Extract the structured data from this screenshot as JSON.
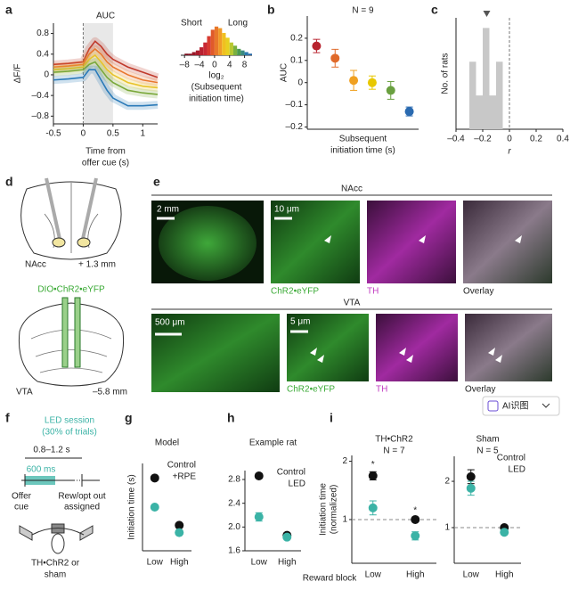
{
  "chart_data": [
    {
      "type": "line",
      "title": "AUC",
      "ylabel": "ΔF/F",
      "xlabel": [
        "Time from",
        "offer cue (s)"
      ],
      "x": [
        -0.5,
        -0.25,
        0,
        0.1,
        0.2,
        0.3,
        0.4,
        0.5,
        0.75,
        1,
        1.25
      ],
      "series": [
        {
          "color": "#c0392b",
          "values": [
            0.2,
            0.22,
            0.25,
            0.5,
            0.65,
            0.55,
            0.4,
            0.3,
            0.15,
            0.05,
            -0.05
          ]
        },
        {
          "color": "#e8772e",
          "values": [
            0.15,
            0.17,
            0.2,
            0.4,
            0.5,
            0.4,
            0.25,
            0.15,
            0.0,
            -0.1,
            -0.15
          ]
        },
        {
          "color": "#e8c32a",
          "values": [
            0.1,
            0.12,
            0.15,
            0.3,
            0.38,
            0.25,
            0.1,
            0.0,
            -0.15,
            -0.22,
            -0.25
          ]
        },
        {
          "color": "#7aa83a",
          "values": [
            0.05,
            0.07,
            0.1,
            0.2,
            0.25,
            0.1,
            -0.05,
            -0.15,
            -0.3,
            -0.35,
            -0.38
          ]
        },
        {
          "color": "#2a7ab8",
          "values": [
            -0.1,
            -0.08,
            -0.05,
            0.1,
            0.1,
            -0.1,
            -0.3,
            -0.45,
            -0.6,
            -0.6,
            -0.58
          ]
        }
      ],
      "shade": [
        0,
        0.5
      ],
      "vline": 0,
      "xlim": [
        -0.5,
        1.25
      ],
      "xticks": [
        -0.5,
        0,
        0.5,
        1
      ],
      "ylim": [
        -0.95,
        1.0
      ],
      "yticks": [
        {
          "value": -0.8,
          "label": "–0.8"
        },
        {
          "value": -0.4,
          "label": "–0.4"
        },
        0,
        0.4,
        0.8
      ]
    },
    {
      "type": "histogram",
      "labels": [
        "Short",
        "Long"
      ],
      "xlabel": [
        "log₂",
        "(Subsequent",
        "initiation time)"
      ],
      "bins": [
        -8,
        -7,
        -6,
        -5,
        -4,
        -3,
        -2,
        -1,
        0,
        1,
        2,
        3,
        4,
        5,
        6,
        7,
        8,
        9,
        10
      ],
      "values": [
        1,
        1,
        2,
        3,
        5,
        8,
        12,
        16,
        18,
        17,
        14,
        11,
        8,
        6,
        4,
        3,
        2,
        1
      ],
      "colors": [
        "#7a1020",
        "#8a1424",
        "#9a1828",
        "#a81c2c",
        "#b82030",
        "#c82834",
        "#d83a30",
        "#e05a2a",
        "#e8782a",
        "#f09a28",
        "#f0c020",
        "#e8d020",
        "#b8c830",
        "#7ab040",
        "#4a9a50",
        "#3a8a80",
        "#2a7ab0",
        "#2a6aa8"
      ],
      "xlim": [
        -9,
        10
      ],
      "xticks": [
        {
          "value": -8,
          "label": "–8"
        },
        {
          "value": -4,
          "label": "–4"
        },
        0,
        4,
        8
      ],
      "ylim": [
        0,
        19
      ]
    },
    {
      "type": "errorbar",
      "title": "N = 9",
      "ylabel": "AUC",
      "xlabel": [
        "Subsequent",
        "initiation time (s)"
      ],
      "categories": [
        null,
        null,
        null,
        null,
        null,
        null
      ],
      "values": [
        0.165,
        0.11,
        0.01,
        0.0,
        -0.035,
        -0.13
      ],
      "errors": [
        0.03,
        0.04,
        0.045,
        0.03,
        0.04,
        0.02
      ],
      "colors": [
        "#b8232e",
        "#e06a2a",
        "#f0a020",
        "#e8c800",
        "#6aa040",
        "#2a6ab0"
      ],
      "ylim": [
        -0.21,
        0.3
      ],
      "yticks": [
        {
          "value": -0.2,
          "label": "–0.2"
        },
        {
          "value": -0.1,
          "label": "–0.1"
        },
        0,
        0.1,
        0.2
      ]
    },
    {
      "type": "histogram",
      "ylabel": "No. of rats",
      "xlabel": [
        "r"
      ],
      "color": "#c8c8c8",
      "bins": [
        -0.3,
        -0.25,
        -0.2,
        -0.15,
        -0.1,
        -0.05
      ],
      "values": [
        2,
        1,
        3,
        1,
        2
      ],
      "marker": -0.17,
      "vline": 0,
      "xlim": [
        -0.4,
        0.4
      ],
      "xticks": [
        {
          "value": -0.4,
          "label": "–0.4"
        },
        {
          "value": -0.2,
          "label": "–0.2"
        },
        0,
        0.2,
        0.4
      ],
      "ylim": [
        0,
        3.3
      ]
    },
    {
      "type": "dot",
      "title": "Model",
      "ylabel": [
        "Initiation time (s)"
      ],
      "legend": true,
      "categories": [
        "Low",
        "High"
      ],
      "series": [
        {
          "name": "Control",
          "color": "#111111",
          "values": [
            1.0,
            0.35
          ]
        },
        {
          "name": "+RPE",
          "color": "#3bb3a6",
          "values": [
            0.6,
            0.25
          ]
        }
      ],
      "ylim": [
        0,
        1.2
      ]
    },
    {
      "type": "dot",
      "title": "Example rat",
      "legend": true,
      "categories": [
        "Low",
        "High"
      ],
      "series": [
        {
          "name": "Control",
          "color": "#111111",
          "values": [
            2.86,
            1.86
          ],
          "errors": [
            0.04,
            0.03
          ]
        },
        {
          "name": "LED",
          "color": "#3bb3a6",
          "values": [
            2.17,
            1.83
          ],
          "errors": [
            0.07,
            0.03
          ]
        }
      ],
      "ylim": [
        1.6,
        2.95
      ],
      "yticks": [
        1.6,
        {
          "value": 2.0,
          "label": "2.0"
        },
        2.4,
        2.8
      ]
    },
    {
      "type": "dot",
      "title": "TH•ChR2",
      "subtitle": "N = 7",
      "ylabel": [
        "Initiation time",
        "(normalized)"
      ],
      "legend": false,
      "categories": [
        "Low",
        "High"
      ],
      "stars": [
        "*",
        "*"
      ],
      "hline": 1,
      "series": [
        {
          "name": "Control",
          "color": "#111111",
          "values": [
            1.75,
            1.0
          ],
          "errors": [
            0.07,
            0.03
          ]
        },
        {
          "name": "LED",
          "color": "#3bb3a6",
          "values": [
            1.2,
            0.72
          ],
          "errors": [
            0.12,
            0.07
          ]
        }
      ],
      "ylim": [
        0.25,
        2.1
      ],
      "yticks": [
        1,
        2
      ]
    },
    {
      "type": "dot",
      "title": "Sham",
      "subtitle": "N = 5",
      "legend": true,
      "categories": [
        "Low",
        "High"
      ],
      "hline": 1,
      "series": [
        {
          "name": "Control",
          "color": "#111111",
          "values": [
            2.1,
            1.0
          ],
          "errors": [
            0.15,
            0.04
          ]
        },
        {
          "name": "LED",
          "color": "#3bb3a6",
          "values": [
            1.85,
            0.9
          ],
          "errors": [
            0.15,
            0.05
          ]
        }
      ],
      "ylim": [
        0.23,
        2.54
      ],
      "yticks": [
        1,
        2
      ]
    }
  ],
  "figure": {
    "letters": [
      "a",
      "b",
      "c",
      "d",
      "e",
      "f",
      "g",
      "h",
      "i"
    ],
    "d": {
      "nacc": "NAcc",
      "nacc_coord": "+ 1.3 mm",
      "virus": "DIO•ChR2•eYFP",
      "vta": "VTA",
      "vta_coord": "–5.8 mm"
    },
    "e": {
      "nacc": "NAcc",
      "vta": "VTA",
      "nacc_scale": [
        "2 mm",
        "10 μm"
      ],
      "vta_scale": [
        "500 μm",
        "5 μm"
      ],
      "nacc_labels": [
        "ChR2•eYFP",
        "TH",
        "Overlay"
      ],
      "vta_labels": [
        "ChR2•eYFP",
        "TH",
        "Overlay"
      ]
    },
    "f": {
      "led": "LED session",
      "trials": "(30% of trials)",
      "delay": "0.8–1.2 s",
      "duration": "600 ms",
      "offer": [
        "Offer",
        "cue"
      ],
      "outcome": [
        "Rew/opt out",
        "assigned"
      ],
      "animal": [
        "TH•ChR2 or",
        "sham"
      ]
    },
    "reward_block": "Reward block",
    "ai_button": "AI识图"
  }
}
